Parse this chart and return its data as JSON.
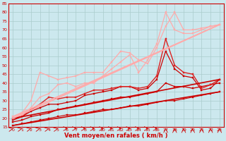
{
  "bg_color": "#cce8ee",
  "grid_color": "#aacccc",
  "xlabel": "Vent moyen/en rafales ( km/h )",
  "xlabel_color": "#cc0000",
  "tick_color": "#cc0000",
  "xlim": [
    -0.5,
    23.5
  ],
  "ylim": [
    15,
    85
  ],
  "yticks": [
    15,
    20,
    25,
    30,
    35,
    40,
    45,
    50,
    55,
    60,
    65,
    70,
    75,
    80,
    85
  ],
  "xticks": [
    0,
    1,
    2,
    3,
    4,
    5,
    6,
    7,
    8,
    9,
    10,
    11,
    12,
    13,
    14,
    15,
    16,
    17,
    18,
    19,
    20,
    21,
    22,
    23
  ],
  "lines": [
    {
      "x": [
        0,
        1,
        2,
        3,
        4,
        5,
        6,
        7,
        8,
        9,
        10,
        11,
        12,
        13,
        14,
        15,
        16,
        17,
        18,
        19,
        20,
        21,
        22,
        23
      ],
      "y": [
        16,
        17,
        18,
        19,
        20,
        21,
        22,
        22,
        23,
        24,
        25,
        25,
        26,
        27,
        27,
        28,
        29,
        30,
        30,
        31,
        32,
        33,
        34,
        35
      ],
      "color": "#cc0000",
      "lw": 0.8,
      "marker": "s",
      "ms": 1.8
    },
    {
      "x": [
        0,
        1,
        2,
        3,
        4,
        5,
        6,
        7,
        8,
        9,
        10,
        11,
        12,
        13,
        14,
        15,
        16,
        17,
        18,
        19,
        20,
        21,
        22,
        23
      ],
      "y": [
        18,
        19,
        21,
        22,
        23,
        25,
        26,
        27,
        28,
        29,
        30,
        31,
        32,
        32,
        33,
        34,
        35,
        40,
        38,
        38,
        37,
        38,
        39,
        40
      ],
      "color": "#cc0000",
      "lw": 0.9,
      "marker": "s",
      "ms": 1.8
    },
    {
      "x": [
        0,
        1,
        2,
        3,
        4,
        5,
        6,
        7,
        8,
        9,
        10,
        11,
        12,
        13,
        14,
        15,
        16,
        17,
        18,
        19,
        20,
        21,
        22,
        23
      ],
      "y": [
        19,
        21,
        24,
        26,
        28,
        28,
        29,
        30,
        33,
        34,
        35,
        36,
        38,
        38,
        36,
        37,
        42,
        58,
        48,
        44,
        43,
        36,
        37,
        42
      ],
      "color": "#cc0000",
      "lw": 0.9,
      "marker": "s",
      "ms": 1.8
    },
    {
      "x": [
        0,
        1,
        2,
        3,
        4,
        5,
        6,
        7,
        8,
        9,
        10,
        11,
        12,
        13,
        14,
        15,
        16,
        17,
        18,
        19,
        20,
        21,
        22,
        23
      ],
      "y": [
        20,
        21,
        25,
        28,
        32,
        31,
        32,
        32,
        34,
        36,
        36,
        37,
        38,
        38,
        37,
        38,
        44,
        65,
        50,
        46,
        45,
        37,
        39,
        42
      ],
      "color": "#dd2222",
      "lw": 1.0,
      "marker": "s",
      "ms": 2.0
    },
    {
      "x": [
        0,
        1,
        2,
        3,
        4,
        5,
        6,
        7,
        8,
        9,
        10,
        11,
        12,
        13,
        14,
        15,
        16,
        17,
        18,
        19,
        20,
        21,
        22,
        23
      ],
      "y": [
        20,
        22,
        26,
        32,
        34,
        39,
        40,
        38,
        40,
        40,
        44,
        48,
        52,
        56,
        46,
        53,
        62,
        80,
        70,
        68,
        68,
        70,
        72,
        73
      ],
      "color": "#ffaaaa",
      "lw": 0.9,
      "marker": "s",
      "ms": 1.8
    },
    {
      "x": [
        0,
        1,
        2,
        3,
        4,
        5,
        6,
        7,
        8,
        9,
        10,
        11,
        12,
        13,
        14,
        15,
        16,
        17,
        18,
        19,
        20,
        21,
        22,
        23
      ],
      "y": [
        21,
        23,
        30,
        46,
        44,
        42,
        43,
        44,
        46,
        46,
        46,
        52,
        58,
        57,
        53,
        51,
        60,
        72,
        80,
        70,
        70,
        71,
        72,
        73
      ],
      "color": "#ffaaaa",
      "lw": 0.9,
      "marker": "s",
      "ms": 1.8
    },
    {
      "x": [
        0,
        23
      ],
      "y": [
        16,
        35
      ],
      "color": "#cc0000",
      "lw": 1.2,
      "marker": null,
      "ms": 0
    },
    {
      "x": [
        0,
        23
      ],
      "y": [
        20,
        42
      ],
      "color": "#cc0000",
      "lw": 1.2,
      "marker": null,
      "ms": 0
    },
    {
      "x": [
        0,
        23
      ],
      "y": [
        20,
        73
      ],
      "color": "#ffaaaa",
      "lw": 1.2,
      "marker": null,
      "ms": 0
    },
    {
      "x": [
        0,
        23
      ],
      "y": [
        21,
        73
      ],
      "color": "#ffaaaa",
      "lw": 1.2,
      "marker": null,
      "ms": 0
    }
  ],
  "arrows": {
    "x": [
      0,
      1,
      2,
      3,
      4,
      5,
      6,
      7,
      8,
      9,
      10,
      11,
      12,
      13,
      14,
      15,
      16,
      17,
      18,
      19,
      20,
      21,
      22,
      23
    ],
    "angles_deg": [
      45,
      45,
      45,
      45,
      45,
      45,
      90,
      90,
      90,
      90,
      90,
      90,
      90,
      90,
      90,
      90,
      90,
      0,
      0,
      0,
      0,
      0,
      0,
      0
    ]
  }
}
